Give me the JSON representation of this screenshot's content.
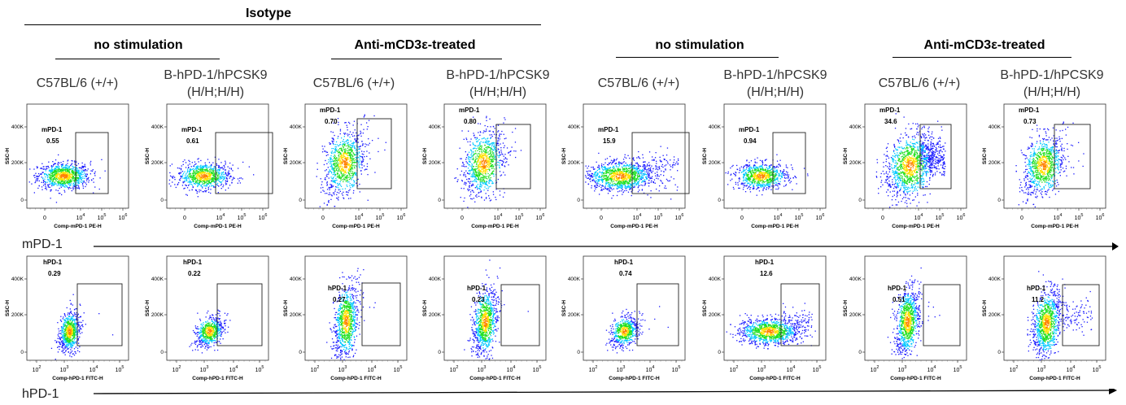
{
  "header": {
    "isotype": "Isotype",
    "groups": [
      "no stimulation",
      "Anti-mCD3ε-treated",
      "no stimulation",
      "Anti-mCD3ε-treated"
    ]
  },
  "columns": [
    "C57BL/6 (+/+)",
    "B-hPD-1/hPCSK9\n(H/H;H/H)",
    "C57BL/6 (+/+)",
    "B-hPD-1/hPCSK9\n(H/H;H/H)",
    "C57BL/6 (+/+)",
    "B-hPD-1/hPCSK9\n(H/H;H/H)",
    "C57BL/6 (+/+)",
    "B-hPD-1/hPCSK9\n(H/H;H/H)"
  ],
  "rows": [
    {
      "name": "mPD-1",
      "xlabel": "Comp-mPD-1 PE-H",
      "ylabel": "SSC-H"
    },
    {
      "name": "hPD-1",
      "xlabel": "Comp-hPD-1 FITC-H",
      "ylabel": "SSC-H"
    }
  ],
  "chart_data": [
    {
      "type": "scatter",
      "row": "mPD-1",
      "xlabel": "Comp-mPD-1 PE-H",
      "ylabel": "SSC-H",
      "x_ticks": [
        "0",
        "10^4",
        "10^5",
        "10^6"
      ],
      "y_ticks": [
        "0",
        "200K",
        "400K"
      ],
      "gate_label": "mPD-1",
      "panels": [
        {
          "column": "C57BL/6 (+/+)",
          "condition": "no stimulation",
          "gate_percent": "0.55"
        },
        {
          "column": "B-hPD-1/hPCSK9 (H/H;H/H)",
          "condition": "no stimulation",
          "gate_percent": "0.61"
        },
        {
          "column": "C57BL/6 (+/+)",
          "condition": "Anti-mCD3ε-treated",
          "gate_percent": "0.70"
        },
        {
          "column": "B-hPD-1/hPCSK9 (H/H;H/H)",
          "condition": "Anti-mCD3ε-treated",
          "gate_percent": "0.80"
        },
        {
          "column": "C57BL/6 (+/+)",
          "condition": "no stimulation",
          "gate_percent": "15.9"
        },
        {
          "column": "B-hPD-1/hPCSK9 (H/H;H/H)",
          "condition": "no stimulation",
          "gate_percent": "0.94"
        },
        {
          "column": "C57BL/6 (+/+)",
          "condition": "Anti-mCD3ε-treated",
          "gate_percent": "34.6"
        },
        {
          "column": "B-hPD-1/hPCSK9 (H/H;H/H)",
          "condition": "Anti-mCD3ε-treated",
          "gate_percent": "0.73"
        }
      ]
    },
    {
      "type": "scatter",
      "row": "hPD-1",
      "xlabel": "Comp-hPD-1 FITC-H",
      "ylabel": "SSC-H",
      "x_ticks": [
        "10^2",
        "10^3",
        "10^4",
        "10^5"
      ],
      "y_ticks": [
        "0",
        "200K",
        "400K"
      ],
      "gate_label": "hPD-1",
      "panels": [
        {
          "column": "C57BL/6 (+/+)",
          "condition": "no stimulation",
          "gate_percent": "0.29"
        },
        {
          "column": "B-hPD-1/hPCSK9 (H/H;H/H)",
          "condition": "no stimulation",
          "gate_percent": "0.22"
        },
        {
          "column": "C57BL/6 (+/+)",
          "condition": "Anti-mCD3ε-treated",
          "gate_percent": "0.27"
        },
        {
          "column": "B-hPD-1/hPCSK9 (H/H;H/H)",
          "condition": "Anti-mCD3ε-treated",
          "gate_percent": "0.23"
        },
        {
          "column": "C57BL/6 (+/+)",
          "condition": "no stimulation",
          "gate_percent": "0.74"
        },
        {
          "column": "B-hPD-1/hPCSK9 (H/H;H/H)",
          "condition": "no stimulation",
          "gate_percent": "12.6"
        },
        {
          "column": "C57BL/6 (+/+)",
          "condition": "Anti-mCD3ε-treated",
          "gate_percent": "0.51"
        },
        {
          "column": "B-hPD-1/hPCSK9 (H/H;H/H)",
          "condition": "Anti-mCD3ε-treated",
          "gate_percent": "11.2"
        }
      ]
    }
  ]
}
